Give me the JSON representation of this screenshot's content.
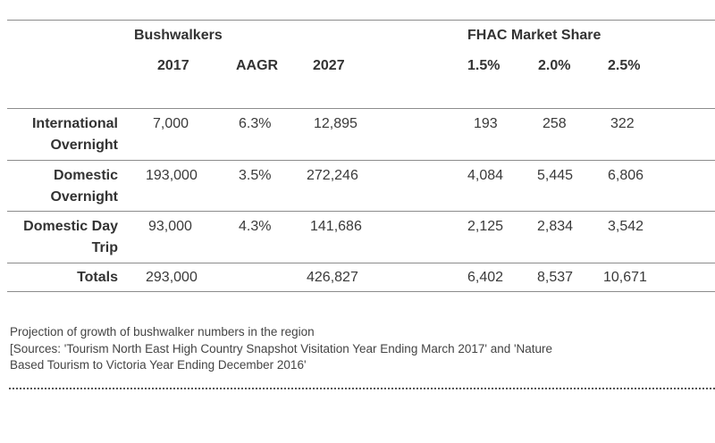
{
  "table": {
    "group_headers": {
      "left": "Bushwalkers",
      "right": "FHAC Market Share"
    },
    "column_headers": [
      "2017",
      "AAGR",
      "2027",
      "1.5%",
      "2.0%",
      "2.5%"
    ],
    "rows": [
      {
        "label_line1": "International",
        "label_line2": "Overnight",
        "values": [
          "7,000",
          "6.3%",
          "12,895",
          "193",
          "258",
          "322"
        ]
      },
      {
        "label_line1": "Domestic",
        "label_line2": "Overnight",
        "values": [
          "193,000",
          "3.5%",
          "272,246",
          "4,084",
          "5,445",
          "6,806"
        ]
      },
      {
        "label_line1": "Domestic Day",
        "label_line2": "Trip",
        "values": [
          "93,000",
          "4.3%",
          "141,686",
          "2,125",
          "2,834",
          "3,542"
        ]
      }
    ],
    "totals": {
      "label": "Totals",
      "values": [
        "293,000",
        "",
        "426,827",
        "6,402",
        "8,537",
        "10,671"
      ]
    }
  },
  "caption": {
    "title": "Projection of growth of bushwalker numbers in the region",
    "sources_line1": "[Sources: 'Tourism North East High Country Snapshot Visitation Year Ending March 2017' and 'Nature",
    "sources_line2": "Based Tourism to Victoria Year Ending December 2016'"
  }
}
